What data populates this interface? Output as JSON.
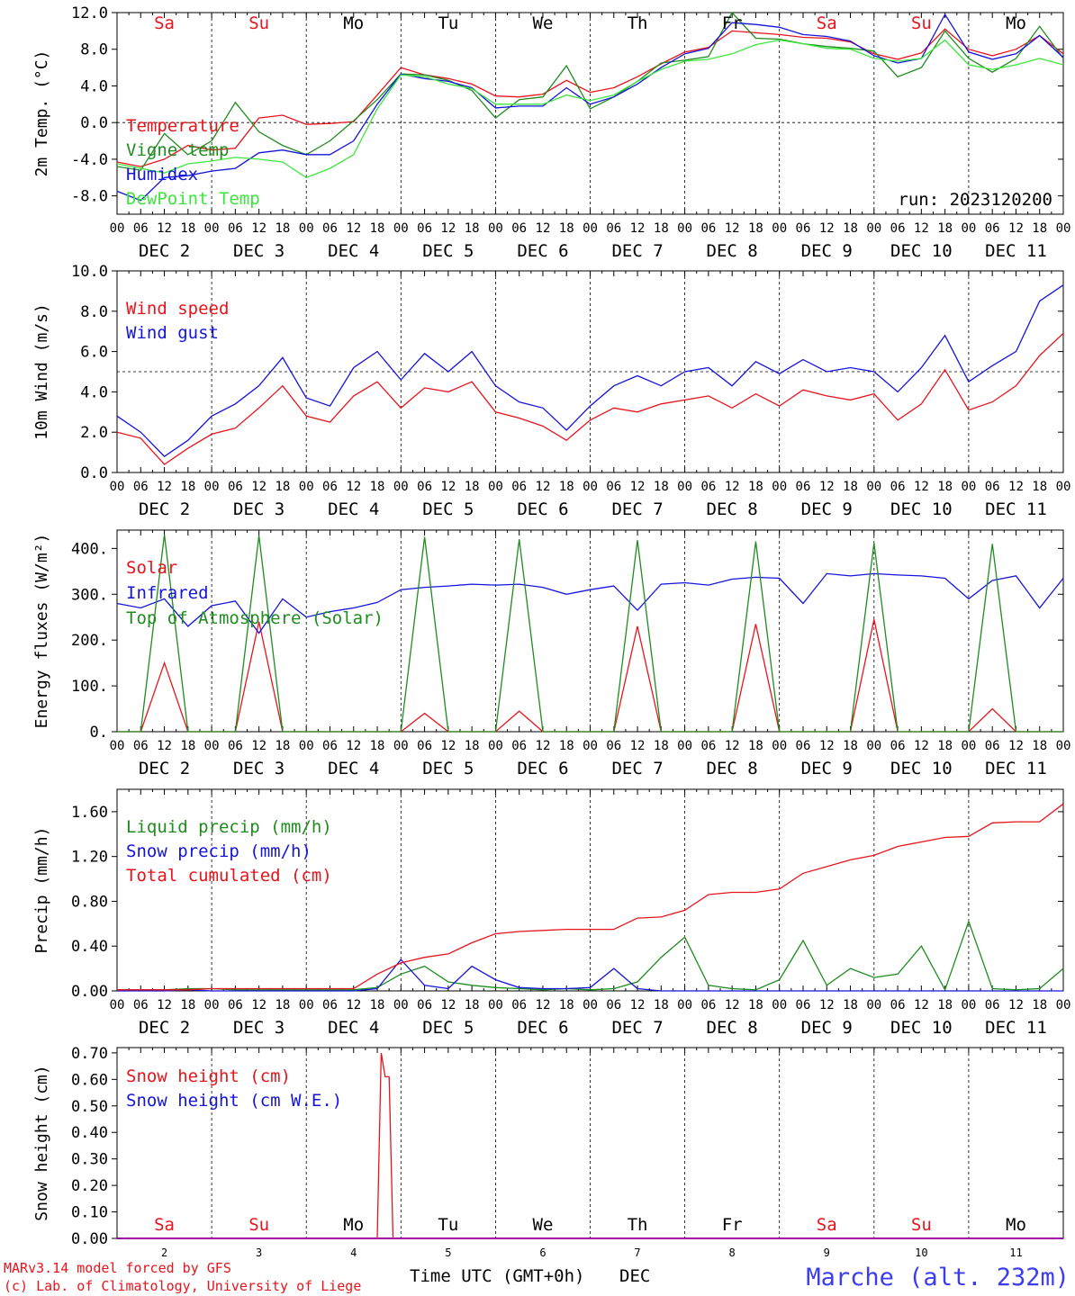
{
  "x_labels": {
    "hours": [
      "00",
      "06",
      "12",
      "18"
    ],
    "day_groups": [
      {
        "month": "DEC",
        "day": "2"
      },
      {
        "month": "DEC",
        "day": "3"
      },
      {
        "month": "DEC",
        "day": "4"
      },
      {
        "month": "DEC",
        "day": "5"
      },
      {
        "month": "DEC",
        "day": "6"
      },
      {
        "month": "DEC",
        "day": "7"
      },
      {
        "month": "DEC",
        "day": "8"
      },
      {
        "month": "DEC",
        "day": "9"
      },
      {
        "month": "DEC",
        "day": "10"
      },
      {
        "month": "DEC",
        "day": "11"
      }
    ],
    "weekdays": [
      {
        "name": "Sa",
        "color": "#e8141c"
      },
      {
        "name": "Su",
        "color": "#e8141c"
      },
      {
        "name": "Mo",
        "color": "#000000"
      },
      {
        "name": "Tu",
        "color": "#000000"
      },
      {
        "name": "We",
        "color": "#000000"
      },
      {
        "name": "Th",
        "color": "#000000"
      },
      {
        "name": "Fr",
        "color": "#000000"
      },
      {
        "name": "Sa",
        "color": "#e8141c"
      },
      {
        "name": "Su",
        "color": "#e8141c"
      },
      {
        "name": "Mo",
        "color": "#000000"
      }
    ]
  },
  "run_label": "run: 2023120200",
  "footer": {
    "credit_1": "MARv3.14 model forced by GFS",
    "credit_2": "(c) Lab. of Climatology, University of Liege",
    "axis_title": "Time UTC (GMT+0h)",
    "month": "DEC",
    "station": "Marche (alt. 232m)"
  },
  "colors": {
    "red": "#e8141c",
    "green": "#1e8c1e",
    "blue": "#1414dc",
    "lightgreen": "#3ce63c",
    "purple": "#a000a0"
  },
  "chart_data": [
    {
      "type": "line",
      "ylabel": "2m Temp. (°C)",
      "ylim": [
        -10,
        12
      ],
      "yticks": [
        -8,
        -4,
        0,
        4,
        8,
        12
      ],
      "ytick_labels": [
        "-8.0",
        "-4.0",
        "0.0",
        "4.0",
        "8.0",
        "12.0"
      ],
      "x_hours": [
        0,
        6,
        12,
        18,
        24,
        30,
        36,
        42,
        48,
        54,
        60,
        66,
        72,
        78,
        84,
        90,
        96,
        102,
        108,
        114,
        120,
        126,
        132,
        138,
        144,
        150,
        156,
        162,
        168,
        174,
        180,
        186,
        192,
        198,
        204,
        210,
        216,
        222,
        228,
        234,
        240
      ],
      "dashed_ref": 0,
      "series": [
        {
          "name": "Temperature",
          "color": "#e8141c",
          "values": [
            -4.3,
            -4.8,
            -4.0,
            -2.5,
            -3.0,
            -2.8,
            0.5,
            0.8,
            -0.2,
            -0.1,
            0.1,
            3.0,
            6.0,
            5.2,
            4.8,
            4.2,
            2.9,
            2.8,
            3.1,
            4.6,
            3.3,
            3.8,
            5.0,
            6.4,
            7.7,
            8.2,
            10.0,
            9.8,
            9.6,
            9.3,
            9.2,
            8.8,
            7.5,
            6.9,
            7.6,
            10.2,
            8.0,
            7.3,
            8.0,
            9.5,
            7.5
          ]
        },
        {
          "name": "Vigne temp",
          "color": "#1e8c1e",
          "values": [
            -4.8,
            -5.2,
            -1.2,
            -3.5,
            -2.0,
            2.2,
            -1.0,
            -2.5,
            -3.5,
            -2.0,
            0.2,
            2.5,
            5.3,
            5.2,
            4.6,
            3.5,
            0.5,
            2.5,
            2.8,
            6.2,
            1.5,
            2.8,
            4.5,
            6.5,
            6.8,
            7.2,
            12.0,
            9.2,
            9.1,
            8.6,
            8.3,
            8.1,
            7.8,
            5.0,
            6.0,
            10.0,
            7.0,
            5.5,
            7.0,
            10.5,
            7.0
          ]
        },
        {
          "name": "Humidex",
          "color": "#1414dc",
          "values": [
            -7.5,
            -8.5,
            -6.0,
            -5.8,
            -5.3,
            -5.0,
            -3.3,
            -3.0,
            -3.5,
            -3.5,
            -2.0,
            2.0,
            5.3,
            4.8,
            4.5,
            3.8,
            1.6,
            1.8,
            1.8,
            3.8,
            2.0,
            2.8,
            4.2,
            6.0,
            7.5,
            8.1,
            10.9,
            10.7,
            10.4,
            9.6,
            9.4,
            8.9,
            7.3,
            6.5,
            7.0,
            11.8,
            7.7,
            6.9,
            7.5,
            9.5,
            7.1
          ]
        },
        {
          "name": "DewPoint Temp",
          "color": "#3ce63c",
          "values": [
            -4.5,
            -5.0,
            -5.5,
            -4.5,
            -4.2,
            -3.8,
            -4.0,
            -4.3,
            -6.0,
            -5.0,
            -3.5,
            1.5,
            5.2,
            5.0,
            4.2,
            3.7,
            2.0,
            2.0,
            2.0,
            3.0,
            2.4,
            3.0,
            4.5,
            5.8,
            6.7,
            6.9,
            7.5,
            8.5,
            9.0,
            8.6,
            8.1,
            8.0,
            7.0,
            6.7,
            7.0,
            9.0,
            6.3,
            5.8,
            6.3,
            7.0,
            6.3
          ]
        }
      ]
    },
    {
      "type": "line",
      "ylabel": "10m Wind (m/s)",
      "ylim": [
        0,
        10
      ],
      "yticks": [
        0,
        2,
        4,
        6,
        8,
        10
      ],
      "ytick_labels": [
        "0.0",
        "2.0",
        "4.0",
        "6.0",
        "8.0",
        "10.0"
      ],
      "x_hours": [
        0,
        6,
        12,
        18,
        24,
        30,
        36,
        42,
        48,
        54,
        60,
        66,
        72,
        78,
        84,
        90,
        96,
        102,
        108,
        114,
        120,
        126,
        132,
        138,
        144,
        150,
        156,
        162,
        168,
        174,
        180,
        186,
        192,
        198,
        204,
        210,
        216,
        222,
        228,
        234,
        240
      ],
      "dashed_ref": 5,
      "series": [
        {
          "name": "Wind speed",
          "color": "#e8141c",
          "values": [
            2.0,
            1.7,
            0.4,
            1.2,
            1.9,
            2.2,
            3.2,
            4.3,
            2.8,
            2.5,
            3.8,
            4.5,
            3.2,
            4.2,
            4.0,
            4.5,
            3.0,
            2.7,
            2.3,
            1.6,
            2.6,
            3.2,
            3.0,
            3.4,
            3.6,
            3.8,
            3.2,
            3.9,
            3.3,
            4.1,
            3.8,
            3.6,
            3.9,
            2.6,
            3.4,
            5.1,
            3.1,
            3.5,
            4.3,
            5.8,
            6.9
          ]
        },
        {
          "name": "Wind gust",
          "color": "#1414dc",
          "values": [
            2.8,
            2.0,
            0.8,
            1.6,
            2.8,
            3.4,
            4.3,
            5.7,
            3.7,
            3.3,
            5.2,
            6.0,
            4.6,
            5.9,
            5.0,
            6.0,
            4.3,
            3.5,
            3.2,
            2.1,
            3.3,
            4.3,
            4.8,
            4.3,
            5.0,
            5.2,
            4.3,
            5.5,
            4.9,
            5.6,
            5.0,
            5.2,
            5.0,
            4.0,
            5.2,
            6.8,
            4.5,
            5.3,
            6.0,
            8.5,
            9.3
          ]
        }
      ]
    },
    {
      "type": "line",
      "ylabel": "Energy fluxes (W/m²)",
      "ylim": [
        0,
        440
      ],
      "yticks": [
        0,
        100,
        200,
        300,
        400
      ],
      "ytick_labels": [
        "0.",
        "100.",
        "200.",
        "300.",
        "400."
      ],
      "x_hours": [
        0,
        6,
        12,
        18,
        24,
        30,
        36,
        42,
        48,
        54,
        60,
        66,
        72,
        78,
        84,
        90,
        96,
        102,
        108,
        114,
        120,
        126,
        132,
        138,
        144,
        150,
        156,
        162,
        168,
        174,
        180,
        186,
        192,
        198,
        204,
        210,
        216,
        222,
        228,
        234,
        240
      ],
      "series": [
        {
          "name": "Solar",
          "color": "#e8141c",
          "values": [
            0,
            0,
            150,
            0,
            0,
            0,
            240,
            0,
            0,
            0,
            0,
            0,
            0,
            40,
            0,
            0,
            0,
            45,
            0,
            0,
            0,
            0,
            230,
            0,
            0,
            0,
            0,
            235,
            0,
            0,
            0,
            0,
            245,
            0,
            0,
            0,
            0,
            50,
            0,
            0,
            0
          ]
        },
        {
          "name": "Infrared",
          "color": "#1414dc",
          "values": [
            280,
            270,
            290,
            230,
            275,
            285,
            215,
            290,
            250,
            262,
            270,
            282,
            310,
            315,
            318,
            322,
            320,
            322,
            315,
            300,
            310,
            318,
            265,
            322,
            325,
            320,
            333,
            337,
            335,
            280,
            345,
            340,
            345,
            342,
            340,
            335,
            290,
            330,
            340,
            270,
            335
          ]
        },
        {
          "name": "Top of Atmosphere (Solar)",
          "color": "#1e8c1e",
          "values": [
            0,
            0,
            430,
            0,
            0,
            0,
            428,
            0,
            0,
            0,
            0,
            0,
            0,
            425,
            0,
            0,
            0,
            420,
            0,
            0,
            0,
            0,
            418,
            0,
            0,
            0,
            0,
            415,
            0,
            0,
            0,
            0,
            412,
            0,
            0,
            0,
            0,
            410,
            0,
            0,
            0
          ]
        }
      ]
    },
    {
      "type": "line",
      "ylabel": "Precip (mm/h)",
      "ylim": [
        0,
        1.8
      ],
      "yticks": [
        0,
        0.4,
        0.8,
        1.2,
        1.6
      ],
      "ytick_labels": [
        "0.00",
        "0.40",
        "0.80",
        "1.20",
        "1.60"
      ],
      "x_hours": [
        0,
        6,
        12,
        18,
        24,
        30,
        36,
        42,
        48,
        54,
        60,
        66,
        72,
        78,
        84,
        90,
        96,
        102,
        108,
        114,
        120,
        126,
        132,
        138,
        144,
        150,
        156,
        162,
        168,
        174,
        180,
        186,
        192,
        198,
        204,
        210,
        216,
        222,
        228,
        234,
        240
      ],
      "series": [
        {
          "name": "Liquid precip (mm/h)",
          "color": "#1e8c1e",
          "values": [
            0.01,
            0.01,
            0.01,
            0.02,
            0.02,
            0.01,
            0.01,
            0.01,
            0.01,
            0.01,
            0.01,
            0.03,
            0.15,
            0.22,
            0.08,
            0.05,
            0.03,
            0.02,
            0.01,
            0.02,
            0.01,
            0.02,
            0.08,
            0.3,
            0.48,
            0.05,
            0.02,
            0.01,
            0.1,
            0.45,
            0.05,
            0.2,
            0.12,
            0.15,
            0.4,
            0.01,
            0.62,
            0.02,
            0.01,
            0.02,
            0.2
          ]
        },
        {
          "name": "Snow precip (mm/h)",
          "color": "#1414dc",
          "values": [
            0,
            0,
            0,
            0.01,
            0,
            0,
            0,
            0,
            0,
            0,
            0,
            0.02,
            0.28,
            0.05,
            0.02,
            0.22,
            0.1,
            0.03,
            0.02,
            0.02,
            0.03,
            0.2,
            0.02,
            0,
            0,
            0,
            0,
            0,
            0,
            0,
            0,
            0,
            0,
            0,
            0,
            0,
            0,
            0,
            0,
            0,
            0
          ]
        },
        {
          "name": "Total cumulated (cm)",
          "color": "#e8141c",
          "values": [
            0.01,
            0.01,
            0.01,
            0.01,
            0.02,
            0.02,
            0.02,
            0.02,
            0.02,
            0.02,
            0.02,
            0.15,
            0.25,
            0.3,
            0.33,
            0.43,
            0.51,
            0.53,
            0.54,
            0.55,
            0.55,
            0.55,
            0.65,
            0.66,
            0.72,
            0.86,
            0.88,
            0.88,
            0.91,
            1.05,
            1.11,
            1.17,
            1.21,
            1.29,
            1.33,
            1.37,
            1.38,
            1.5,
            1.51,
            1.51,
            1.67
          ]
        }
      ]
    },
    {
      "type": "line",
      "ylabel": "Snow height (cm)",
      "ylim": [
        0,
        0.72
      ],
      "yticks": [
        0,
        0.1,
        0.2,
        0.3,
        0.4,
        0.5,
        0.6,
        0.7
      ],
      "ytick_labels": [
        "0.00",
        "0.10",
        "0.20",
        "0.30",
        "0.40",
        "0.50",
        "0.60",
        "0.70"
      ],
      "x_hours": [
        0,
        6,
        12,
        18,
        24,
        30,
        36,
        42,
        48,
        54,
        60,
        66,
        67,
        68,
        69,
        70,
        71,
        72,
        78,
        84,
        90,
        96,
        102,
        108,
        114,
        120,
        126,
        132,
        138,
        144,
        150,
        156,
        162,
        168,
        174,
        180,
        186,
        192,
        198,
        204,
        210,
        216,
        222,
        228,
        234,
        240
      ],
      "series": [
        {
          "name": "Snow height (cm)",
          "color": "#e8141c",
          "values": [
            0,
            0,
            0,
            0,
            0,
            0,
            0,
            0,
            0,
            0,
            0,
            0,
            0.7,
            0.61,
            0.61,
            0,
            0,
            0,
            0,
            0,
            0,
            0,
            0,
            0,
            0,
            0,
            0,
            0,
            0,
            0,
            0,
            0,
            0,
            0,
            0,
            0,
            0,
            0,
            0,
            0,
            0,
            0,
            0,
            0,
            0,
            0
          ]
        },
        {
          "name": "Snow height (cm W.E.)",
          "color": "#1414dc",
          "values": [
            0,
            0,
            0,
            0,
            0,
            0,
            0,
            0,
            0,
            0,
            0,
            0,
            0,
            0,
            0,
            0,
            0,
            0,
            0,
            0,
            0,
            0,
            0,
            0,
            0,
            0,
            0,
            0,
            0,
            0,
            0,
            0,
            0,
            0,
            0,
            0,
            0,
            0,
            0,
            0,
            0,
            0,
            0,
            0,
            0,
            0
          ]
        }
      ]
    }
  ]
}
